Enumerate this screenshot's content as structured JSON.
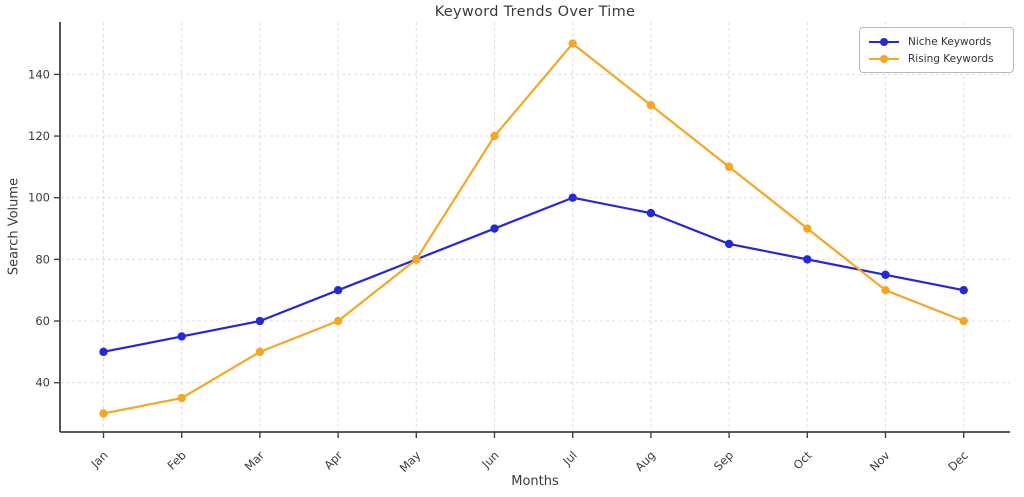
{
  "chart_data": {
    "type": "line",
    "title": "Keyword Trends Over Time",
    "xlabel": "Months",
    "ylabel": "Search Volume",
    "categories": [
      "Jan",
      "Feb",
      "Mar",
      "Apr",
      "May",
      "Jun",
      "Jul",
      "Aug",
      "Sep",
      "Oct",
      "Nov",
      "Dec"
    ],
    "series": [
      {
        "name": "Niche Keywords",
        "color": "#2428d6",
        "values": [
          50,
          55,
          60,
          70,
          80,
          90,
          100,
          95,
          85,
          80,
          75,
          70
        ]
      },
      {
        "name": "Rising Keywords",
        "color": "#f5a623",
        "values": [
          30,
          35,
          50,
          60,
          80,
          120,
          150,
          130,
          110,
          90,
          70,
          60
        ]
      }
    ],
    "y_ticks": [
      40,
      60,
      80,
      100,
      120,
      140
    ],
    "ylim": [
      24,
      157
    ],
    "grid": true,
    "legend_position": "top-right",
    "styles": {
      "grid_color": "#dcdcdc",
      "spine_color": "#424242",
      "tick_text_color": "#3b3b3b"
    }
  }
}
